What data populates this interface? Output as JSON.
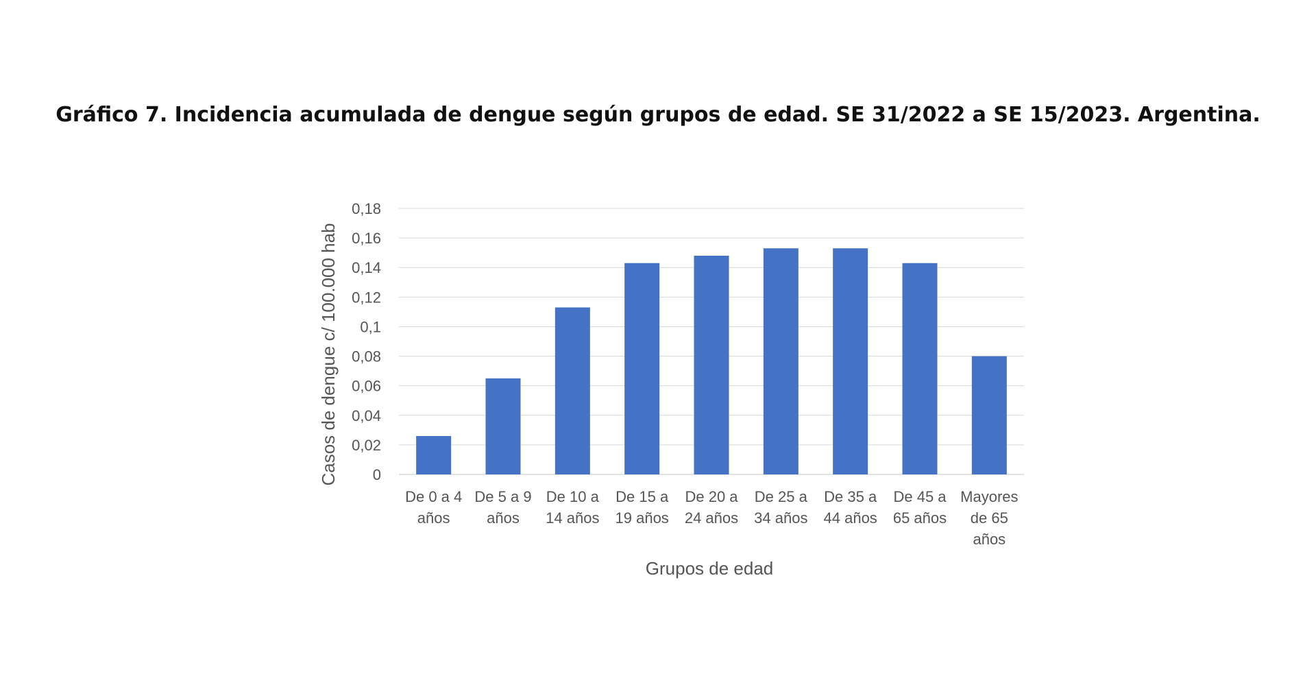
{
  "chart_data": {
    "type": "bar",
    "title": "Gráfico 7. Incidencia acumulada de dengue según grupos de edad. SE 31/2022 a SE 15/2023. Argentina.",
    "xlabel": "Grupos de edad",
    "ylabel": "Casos de dengue c/ 100.000 hab",
    "categories": [
      [
        "De 0 a 4",
        "años"
      ],
      [
        "De 5 a 9",
        "años"
      ],
      [
        "De 10 a",
        "14 años"
      ],
      [
        "De 15 a",
        "19 años"
      ],
      [
        "De 20 a",
        "24 años"
      ],
      [
        "De 25 a",
        "34 años"
      ],
      [
        "De 35 a",
        "44 años"
      ],
      [
        "De 45 a",
        "65 años"
      ],
      [
        "Mayores",
        "de 65",
        "años"
      ]
    ],
    "values": [
      0.026,
      0.065,
      0.113,
      0.143,
      0.148,
      0.153,
      0.153,
      0.143,
      0.08
    ],
    "ylim": [
      0,
      0.18
    ],
    "yticks": [
      "0",
      "0,02",
      "0,04",
      "0,06",
      "0,08",
      "0,1",
      "0,12",
      "0,14",
      "0,16",
      "0,18"
    ],
    "grid": true,
    "legend": "none",
    "bar_color": "#4472C4",
    "grid_color": "#d9d9d9"
  }
}
